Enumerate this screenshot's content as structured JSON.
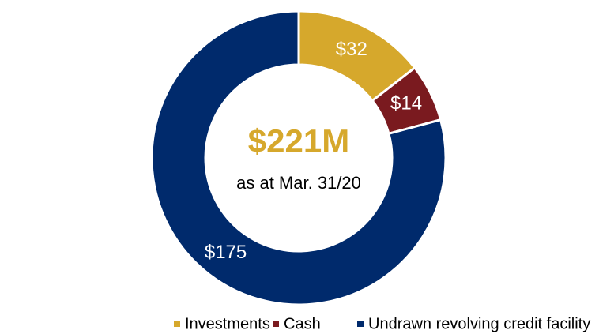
{
  "chart_data": {
    "type": "donut",
    "categories": [
      "Investments",
      "Cash",
      "Undrawn revolving credit facility"
    ],
    "values": [
      32,
      14,
      175
    ],
    "value_labels": [
      "$32",
      "$14",
      "$175"
    ],
    "colors": [
      "#D6A82C",
      "#7A1A1F",
      "#002A6C"
    ],
    "center_label": "$221M",
    "center_sublabel": "as at Mar. 31/20",
    "legend": "bottom"
  }
}
